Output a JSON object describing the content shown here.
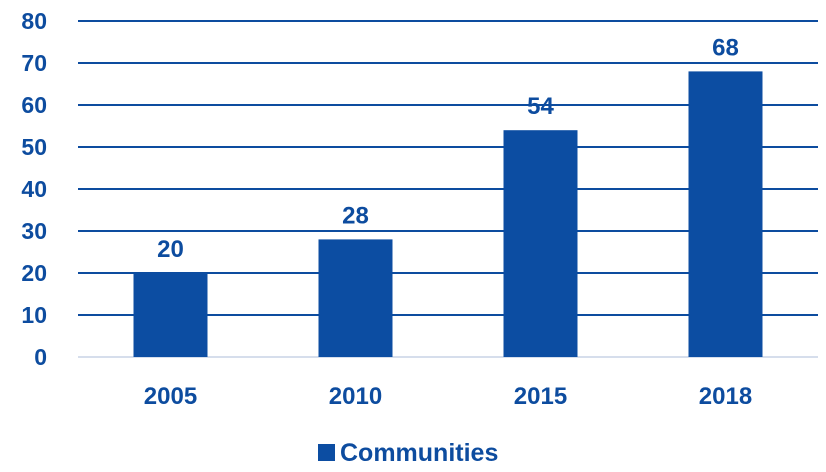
{
  "chart_data": {
    "type": "bar",
    "categories": [
      "2005",
      "2010",
      "2015",
      "2018"
    ],
    "series": [
      {
        "name": "Communities",
        "values": [
          20,
          28,
          54,
          68
        ]
      }
    ],
    "title": "",
    "xlabel": "",
    "ylabel": "",
    "ylim": [
      0,
      80
    ],
    "yticks": [
      0,
      10,
      20,
      30,
      40,
      50,
      60,
      70,
      80
    ],
    "ytick_labels": [
      "0",
      "10",
      "20",
      "30",
      "40",
      "50",
      "60",
      "70",
      "80"
    ],
    "data_labels": [
      "20",
      "28",
      "54",
      "68"
    ],
    "grid": true,
    "legend": {
      "position": "bottom",
      "entries": [
        "Communities"
      ]
    },
    "colors": {
      "bar": "#0c4da2",
      "text": "#0d4c9f",
      "gridline": "#0d4c9f",
      "baseline": "#c8d4e6"
    }
  }
}
